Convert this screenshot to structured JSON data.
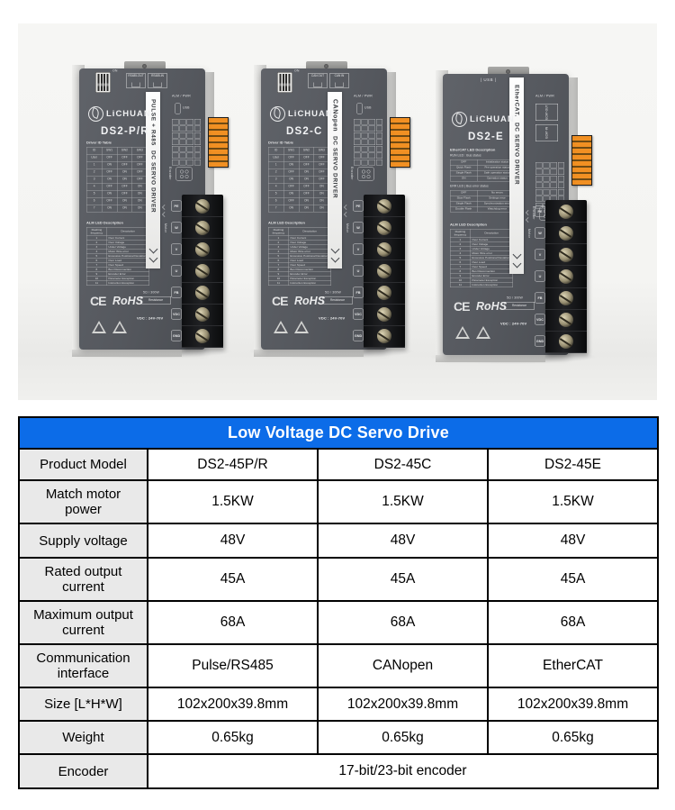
{
  "photo": {
    "shared": {
      "labels": {
        "brand": "LiCHUAN",
        "alm_pwr": "ALM / PWR",
        "usb": "USB",
        "encoder": "Encoder",
        "motor": "Motor",
        "dip_on": "ON",
        "ce": "CE",
        "rohs": "RoHS",
        "resistance_rating": "5Ω / 300W",
        "resistance": "Resistance",
        "vdc_range": "VDC : 24V-70V",
        "motor_terminals": [
          "PE",
          "W",
          "V",
          "U"
        ],
        "power_terminals": [
          "FB",
          "VDC",
          "GND"
        ]
      },
      "id_table": {
        "title": "Driver ID Table",
        "headers": [
          "ID",
          "SW1",
          "SW2",
          "SW3"
        ],
        "rows": [
          [
            "User",
            "OFF",
            "OFF",
            "OFF"
          ],
          [
            "1",
            "ON",
            "OFF",
            "OFF"
          ],
          [
            "2",
            "OFF",
            "ON",
            "OFF"
          ],
          [
            "3",
            "ON",
            "ON",
            "OFF"
          ],
          [
            "4",
            "OFF",
            "OFF",
            "ON"
          ],
          [
            "5",
            "ON",
            "OFF",
            "ON"
          ],
          [
            "6",
            "OFF",
            "ON",
            "ON"
          ],
          [
            "7",
            "ON",
            "ON",
            "ON"
          ]
        ]
      },
      "alm_led_table": {
        "title": "ALM LED Description",
        "headers": [
          "Flashing frequency",
          "Description"
        ],
        "rows": [
          [
            "1",
            "Over Current"
          ],
          [
            "2",
            "Over Voltage"
          ],
          [
            "3",
            "Under Voltage"
          ],
          [
            "4",
            "Motor Wire error"
          ],
          [
            "5",
            "Excessive Positional Deviation"
          ],
          [
            "6",
            "Over Load"
          ],
          [
            "7",
            "Over Speed"
          ],
          [
            "8",
            "Bus Disconnection"
          ],
          [
            "9",
            "Encoder Error"
          ],
          [
            "10",
            "Parameter Exception"
          ],
          [
            "11",
            "Instruction Exception"
          ]
        ]
      }
    },
    "drives": [
      {
        "model": "DS2-P/R",
        "stripe_line1": "PULSE + R485",
        "stripe_line2": "DC SERVO DRIVER",
        "connector_left": "RS485-OUT",
        "connector_right": "RS485-IN"
      },
      {
        "model": "DS2-C",
        "stripe_line1": "CANopen",
        "stripe_line2": "DC SERVO DRIVER",
        "connector_left": "CAN OUT",
        "connector_right": "CAN IN"
      },
      {
        "model": "DS2-E",
        "stripe_line1": "EtherCAT.",
        "stripe_line2": "DC SERVO DRIVER",
        "top_label": "| USB |",
        "connector_left": "ECAT-OUT",
        "connector_right": "ECAT-IN",
        "ecat_tables": {
          "title": "EtherCAT LED Description",
          "run_title": "RUN LED : Bus status",
          "run_rows": [
            [
              "OFF",
              "Initialization status"
            ],
            [
              "Quick Flash",
              "Pre-operation status"
            ],
            [
              "Single Flash",
              "Safe operation status"
            ],
            [
              "ON",
              "Operation status"
            ]
          ],
          "err_title": "ERR LED | Bus error status",
          "err_rows": [
            [
              "OFF",
              "No errors"
            ],
            [
              "Slow Flash",
              "Settings error"
            ],
            [
              "Single Flash",
              "Synchronization error"
            ],
            [
              "Double Flash",
              "Watchdog error"
            ]
          ]
        }
      }
    ]
  },
  "spec_table": {
    "title": "Low Voltage DC Servo Drive",
    "rows": [
      {
        "label": "Product Model",
        "values": [
          "DS2-45P/R",
          "DS2-45C",
          "DS2-45E"
        ]
      },
      {
        "label": "Match motor power",
        "values": [
          "1.5KW",
          "1.5KW",
          "1.5KW"
        ]
      },
      {
        "label": "Supply voltage",
        "values": [
          "48V",
          "48V",
          "48V"
        ]
      },
      {
        "label": "Rated output current",
        "values": [
          "45A",
          "45A",
          "45A"
        ]
      },
      {
        "label": "Maximum output current",
        "values": [
          "68A",
          "68A",
          "68A"
        ]
      },
      {
        "label": "Communication interface",
        "values": [
          "Pulse/RS485",
          "CANopen",
          "EtherCAT"
        ]
      },
      {
        "label": "Size [L*H*W]",
        "values": [
          "102x200x39.8mm",
          "102x200x39.8mm",
          "102x200x39.8mm"
        ]
      },
      {
        "label": "Weight",
        "values": [
          "0.65kg",
          "0.65kg",
          "0.65kg"
        ]
      },
      {
        "label": "Encoder",
        "values": [
          "17-bit/23-bit encoder"
        ],
        "colspan": 3
      }
    ],
    "colors": {
      "header_bg": "#0c6ce8",
      "header_text": "#ffffff",
      "label_bg": "#e9e9e9",
      "border": "#000000",
      "drive_body": "#55585e",
      "connector_orange": "#f19023",
      "photo_bg": "#f4f4f2"
    }
  }
}
